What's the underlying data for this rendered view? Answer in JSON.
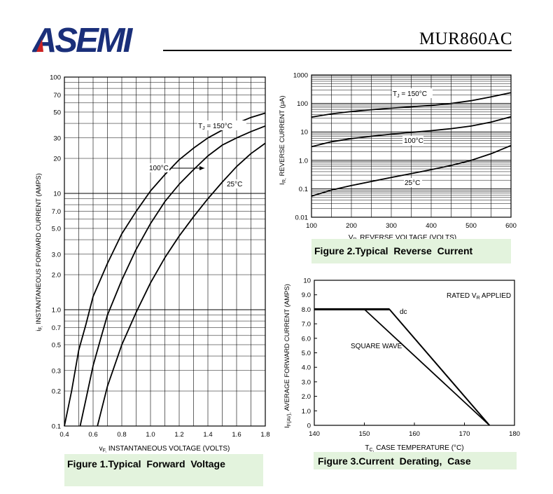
{
  "header": {
    "logo_text": "ASEMI",
    "part_number": "MUR860AC",
    "logo_color": "#1a2f7a",
    "logo_accent_color": "#cc2222"
  },
  "captions": {
    "fig1": "Figure 1.Typical  Forward  Voltage",
    "fig2": "Figure 2.Typical  Reverse  Current",
    "fig3": "Figure 3.Current  Derating,  Case",
    "caption_bg": "#e3f3dd"
  },
  "chart_data": [
    {
      "id": "fig1",
      "type": "line",
      "xlabel_main": "v",
      "xlabel_sub": "F,",
      "xlabel_rest": " INSTANTANEOUS VOLTAGE (VOLTS)",
      "ylabel_main": "i",
      "ylabel_sub": "F,",
      "ylabel_rest": " INSTANTANEOUS FORWARD CURRENT (AMPS)",
      "xlim": [
        0.4,
        1.8
      ],
      "ylim": [
        0.1,
        100
      ],
      "yscale": "log",
      "grid": true,
      "x_ticks": [
        "0.4",
        "0.6",
        "0.8",
        "1.0",
        "1.2",
        "1.4",
        "1.6",
        "1.8"
      ],
      "y_ticks": [
        "0.1",
        "0.2",
        "0.3",
        "0.5",
        "0.7",
        "1.0",
        "2.0",
        "3.0",
        "5.0",
        "7.0",
        "10",
        "20",
        "30",
        "50",
        "70",
        "100"
      ],
      "series": [
        {
          "name": "T_J = 150°C",
          "x": [
            0.4,
            0.45,
            0.5,
            0.55,
            0.6,
            0.7,
            0.8,
            0.9,
            1.0,
            1.1,
            1.2,
            1.3,
            1.4,
            1.5,
            1.6,
            1.7,
            1.8
          ],
          "y": [
            0.1,
            0.2,
            0.45,
            0.75,
            1.3,
            2.5,
            4.5,
            7.0,
            10.5,
            14.5,
            19.5,
            24.5,
            30,
            35,
            40,
            45,
            49
          ]
        },
        {
          "name": "100°C",
          "x": [
            0.51,
            0.55,
            0.6,
            0.65,
            0.7,
            0.8,
            0.9,
            1.0,
            1.1,
            1.2,
            1.3,
            1.4,
            1.5,
            1.6,
            1.7,
            1.8
          ],
          "y": [
            0.1,
            0.17,
            0.33,
            0.55,
            0.9,
            1.8,
            3.3,
            5.5,
            8.5,
            12,
            16,
            21,
            26,
            30,
            34,
            38
          ]
        },
        {
          "name": "25°C",
          "x": [
            0.63,
            0.7,
            0.8,
            0.9,
            1.0,
            1.1,
            1.2,
            1.3,
            1.4,
            1.5,
            1.6,
            1.7,
            1.8
          ],
          "y": [
            0.1,
            0.22,
            0.5,
            0.95,
            1.7,
            2.8,
            4.3,
            6.3,
            9,
            12.5,
            17,
            22,
            27
          ]
        }
      ],
      "annotations": [
        "T",
        "J",
        " = 150°C",
        "100°C",
        "25°C"
      ]
    },
    {
      "id": "fig2",
      "type": "line",
      "xlabel_main": "V",
      "xlabel_sub": "R,",
      "xlabel_rest": " REVERSE VOLTAGE (VOLTS)",
      "ylabel_main": "I",
      "ylabel_sub": "R,",
      "ylabel_rest": " REVERSE CURRENT (μA)",
      "xlim": [
        100,
        600
      ],
      "ylim": [
        0.01,
        1000
      ],
      "yscale": "log",
      "grid": true,
      "x_ticks": [
        "100",
        "200",
        "300",
        "400",
        "500",
        "600"
      ],
      "y_ticks": [
        "0.01",
        "0.1",
        "1.0",
        "10",
        "100",
        "1000"
      ],
      "series": [
        {
          "name": "T_J = 150°C",
          "x": [
            100,
            150,
            200,
            250,
            300,
            350,
            400,
            450,
            500,
            550,
            600
          ],
          "y": [
            33,
            43,
            52,
            60,
            68,
            76,
            85,
            100,
            125,
            170,
            240
          ]
        },
        {
          "name": "100°C",
          "x": [
            100,
            150,
            200,
            250,
            300,
            350,
            400,
            450,
            500,
            550,
            600
          ],
          "y": [
            3.0,
            4.5,
            5.8,
            7.0,
            8.3,
            9.6,
            11,
            13,
            16,
            22,
            34
          ]
        },
        {
          "name": "25°C",
          "x": [
            100,
            150,
            200,
            250,
            300,
            350,
            400,
            450,
            500,
            550,
            600
          ],
          "y": [
            0.055,
            0.09,
            0.13,
            0.18,
            0.25,
            0.34,
            0.47,
            0.66,
            1.0,
            1.7,
            3.3
          ]
        }
      ],
      "annotations": [
        "T",
        "J",
        " = 150°C",
        "100°C",
        "25°C"
      ]
    },
    {
      "id": "fig3",
      "type": "line",
      "xlabel_main": "T",
      "xlabel_sub": "C,",
      "xlabel_rest": " CASE TEMPERATURE (°C)",
      "ylabel_main": "I",
      "ylabel_sub": "F(AV),",
      "ylabel_rest": " AVERAGE FORWARD CURRENT (AMPS)",
      "xlim": [
        140,
        180
      ],
      "ylim": [
        0,
        10
      ],
      "grid": false,
      "x_ticks": [
        "140",
        "150",
        "160",
        "170",
        "180"
      ],
      "y_ticks": [
        "0",
        "1.0",
        "2.0",
        "3.0",
        "4.0",
        "5.0",
        "6.0",
        "7.0",
        "8.0",
        "9.0",
        "10"
      ],
      "series": [
        {
          "name": "dc",
          "x": [
            140,
            155,
            175
          ],
          "y": [
            8,
            8,
            0
          ]
        },
        {
          "name": "SQUARE WAVE",
          "x": [
            140,
            150,
            175
          ],
          "y": [
            8,
            8,
            0
          ]
        }
      ],
      "annotations": [
        "RATED V",
        "R",
        " APPLIED",
        "dc",
        "SQUARE WAVE"
      ]
    }
  ]
}
